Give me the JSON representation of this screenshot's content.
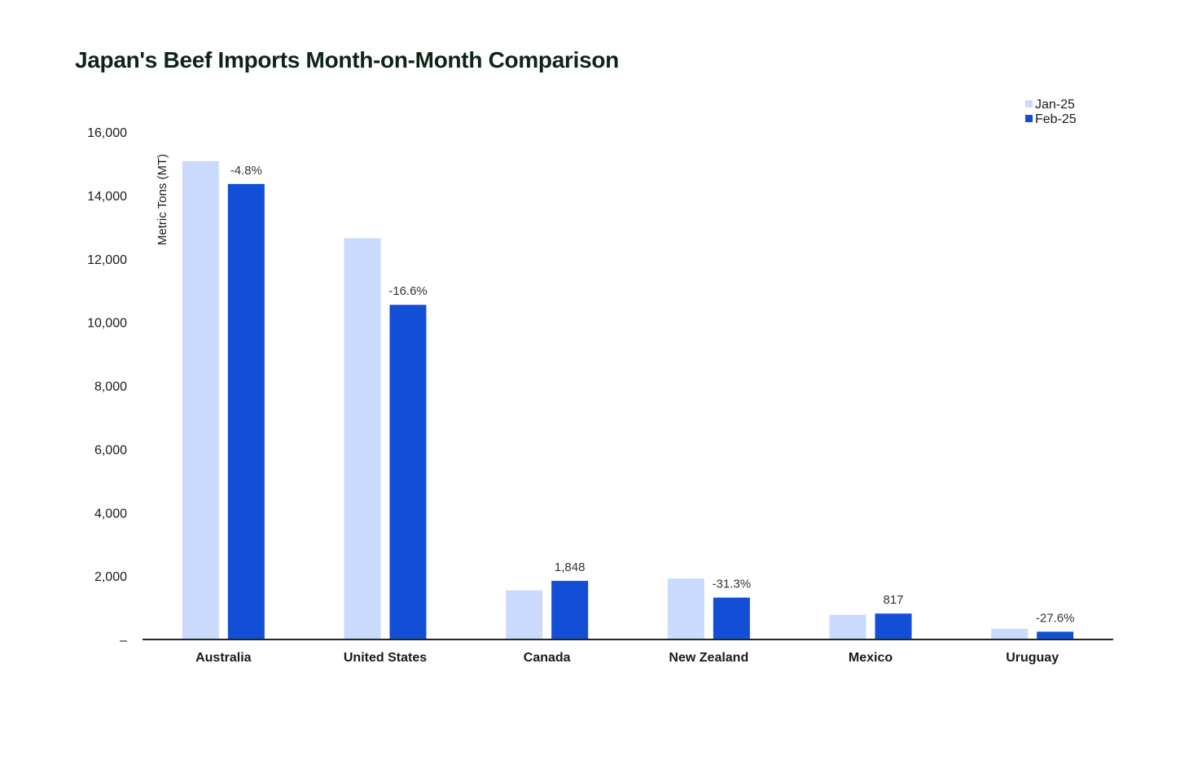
{
  "chart_data": {
    "type": "bar",
    "title": "Japan's Beef Imports Month-on-Month Comparison",
    "xlabel": "",
    "ylabel": "Metric Tons (MT)",
    "ylim": [
      0,
      16000
    ],
    "yticks": [
      {
        "value": 0,
        "label": "–"
      },
      {
        "value": 2000,
        "label": "2,000"
      },
      {
        "value": 4000,
        "label": "4,000"
      },
      {
        "value": 6000,
        "label": "6,000"
      },
      {
        "value": 8000,
        "label": "8,000"
      },
      {
        "value": 10000,
        "label": "10,000"
      },
      {
        "value": 12000,
        "label": "12,000"
      },
      {
        "value": 14000,
        "label": "14,000"
      },
      {
        "value": 16000,
        "label": "16,000"
      }
    ],
    "grid": false,
    "legend_position": "top-right",
    "categories": [
      "Australia",
      "United States",
      "Canada",
      "New Zealand",
      "Mexico",
      "Uruguay"
    ],
    "series": [
      {
        "name": "Jan-25",
        "color": "#c9dafc",
        "values": [
          15080,
          12650,
          1550,
          1920,
          780,
          340
        ]
      },
      {
        "name": "Feb-25",
        "color": "#124fd6",
        "values": [
          14360,
          10550,
          1848,
          1320,
          817,
          246
        ]
      }
    ],
    "annotations": [
      "-4.8%",
      "-16.6%",
      "1,848",
      "-31.3%",
      "817",
      "-27.6%"
    ]
  }
}
